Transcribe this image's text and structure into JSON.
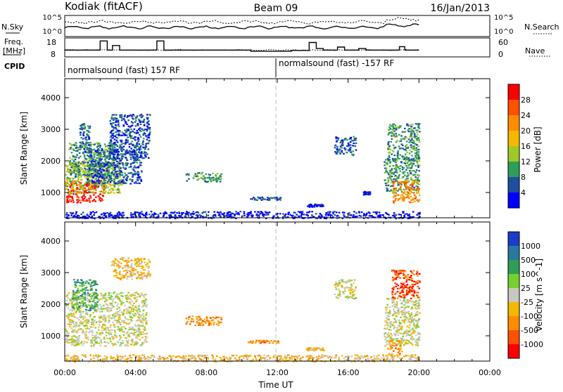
{
  "header": {
    "station": "Kodiak (fitACF)",
    "beam": "Beam 09",
    "date": "16/Jan/2013"
  },
  "summary": {
    "nsky_label": "N.Sky",
    "nsearch_label": "N.Search",
    "noise_ticks": [
      "10^5",
      "10^0"
    ],
    "noise_ticks_right": [
      "10^5",
      "10^0"
    ],
    "freq_label_1": "Freq.",
    "freq_label_2": "[MHz]",
    "freq_ticks": [
      "18",
      "8"
    ],
    "nave_label": "Nave",
    "nave_ticks": [
      "60",
      "0"
    ],
    "cpid_label": "CPID",
    "cpid_segments": [
      {
        "start_ut": 0,
        "end_ut": 12,
        "label": "normalsound (fast) 157 RF"
      },
      {
        "start_ut": 12,
        "end_ut": 20,
        "label": "normalsound (fast) -157 RF"
      }
    ],
    "freq_steps": [
      [
        0,
        11.6
      ],
      [
        2.0,
        16.4
      ],
      [
        2.4,
        11.6
      ],
      [
        2.7,
        14.0
      ],
      [
        3.1,
        11.6
      ],
      [
        5.2,
        16.4
      ],
      [
        5.6,
        11.6
      ],
      [
        10.5,
        11.0
      ],
      [
        12.8,
        11.4
      ],
      [
        13.8,
        15.6
      ],
      [
        14.2,
        12.4
      ],
      [
        14.6,
        11.6
      ],
      [
        15.4,
        13.2
      ],
      [
        15.8,
        11.6
      ],
      [
        16.6,
        12.4
      ],
      [
        17.0,
        11.6
      ],
      [
        18.9,
        13.4
      ],
      [
        19.2,
        11.6
      ],
      [
        20.0,
        11.6
      ]
    ]
  },
  "chart_data": [
    {
      "type": "heatmap",
      "panel": "power",
      "ylabel": "Slant Range [km]",
      "y_ticks": [
        1000,
        2000,
        3000,
        4000
      ],
      "ylim": [
        200,
        4600
      ],
      "x_ticks": [
        "00:00",
        "04:00",
        "08:00",
        "12:00",
        "16:00",
        "20:00",
        "00:00"
      ],
      "xlim_hours": [
        0,
        24
      ],
      "colorbar": {
        "label": "Power [dB]",
        "ticks": [
          "28",
          "24",
          "20",
          "16",
          "12",
          "8",
          "4"
        ],
        "colors": [
          "#ff0000",
          "#ff5000",
          "#ff8c00",
          "#f5b800",
          "#a0c828",
          "#2e9e58",
          "#1e4ea0",
          "#0000ff"
        ]
      },
      "regions": [
        {
          "t0": 0.0,
          "t1": 2.2,
          "r0": 700,
          "r1": 1400,
          "level": 0
        },
        {
          "t0": 0.0,
          "t1": 3.2,
          "r0": 1000,
          "r1": 2000,
          "level": 4
        },
        {
          "t0": 0.2,
          "t1": 2.8,
          "r0": 1500,
          "r1": 2600,
          "level": 5
        },
        {
          "t0": 1.2,
          "t1": 4.3,
          "r0": 1300,
          "r1": 2400,
          "level": 6
        },
        {
          "t0": 2.5,
          "t1": 4.8,
          "r0": 2100,
          "r1": 3500,
          "level": 6
        },
        {
          "t0": 0.8,
          "t1": 1.4,
          "r0": 2300,
          "r1": 3200,
          "level": 6
        },
        {
          "t0": 6.8,
          "t1": 8.8,
          "r0": 1350,
          "r1": 1650,
          "level": 5
        },
        {
          "t0": 10.3,
          "t1": 12.2,
          "r0": 780,
          "r1": 880,
          "level": 6
        },
        {
          "t0": 13.6,
          "t1": 14.6,
          "r0": 560,
          "r1": 650,
          "level": 7
        },
        {
          "t0": 15.2,
          "t1": 16.4,
          "r0": 2200,
          "r1": 2800,
          "level": 6
        },
        {
          "t0": 16.8,
          "t1": 17.2,
          "r0": 950,
          "r1": 1050,
          "level": 7
        },
        {
          "t0": 18.0,
          "t1": 20.0,
          "r0": 1000,
          "r1": 2100,
          "level": 5
        },
        {
          "t0": 18.5,
          "t1": 20.0,
          "r0": 700,
          "r1": 1400,
          "level": 2
        },
        {
          "t0": 18.2,
          "t1": 20.0,
          "r0": 2000,
          "r1": 3200,
          "level": 5
        },
        {
          "t0": 0.0,
          "t1": 20.0,
          "r0": 200,
          "r1": 420,
          "level": 7
        }
      ]
    },
    {
      "type": "heatmap",
      "panel": "velocity",
      "ylabel": "Slant Range [km]",
      "y_ticks": [
        1000,
        2000,
        3000,
        4000
      ],
      "ylim": [
        200,
        4600
      ],
      "x_ticks": [
        "00:00",
        "04:00",
        "08:00",
        "12:00",
        "16:00",
        "20:00",
        "00:00"
      ],
      "xlim_hours": [
        0,
        24
      ],
      "xlabel": "Time UT",
      "colorbar": {
        "label": "Velocity [m s^-1]",
        "ticks": [
          "1000",
          "500",
          "100",
          "25",
          "-25",
          "-100",
          "-500",
          "-1000"
        ],
        "colors": [
          "#1a3cc8",
          "#2878a0",
          "#2e9e58",
          "#78d030",
          "#c8c8c0",
          "#f5b800",
          "#ff8c00",
          "#ff5000",
          "#ff0000"
        ]
      },
      "regions": [
        {
          "t0": 0.0,
          "t1": 4.6,
          "r0": 700,
          "r1": 2400,
          "level": 4
        },
        {
          "t0": 0.4,
          "t1": 1.8,
          "r0": 1800,
          "r1": 2800,
          "level": 2
        },
        {
          "t0": 2.6,
          "t1": 4.8,
          "r0": 2800,
          "r1": 3500,
          "level": 5
        },
        {
          "t0": 6.8,
          "t1": 8.8,
          "r0": 1350,
          "r1": 1650,
          "level": 6
        },
        {
          "t0": 10.3,
          "t1": 12.2,
          "r0": 780,
          "r1": 880,
          "level": 6
        },
        {
          "t0": 13.6,
          "t1": 14.6,
          "r0": 560,
          "r1": 650,
          "level": 5
        },
        {
          "t0": 15.2,
          "t1": 16.4,
          "r0": 2200,
          "r1": 2800,
          "level": 4
        },
        {
          "t0": 18.0,
          "t1": 20.0,
          "r0": 700,
          "r1": 2200,
          "level": 4
        },
        {
          "t0": 18.4,
          "t1": 20.0,
          "r0": 2200,
          "r1": 3100,
          "level": 7
        },
        {
          "t0": 18.2,
          "t1": 19.0,
          "r0": 400,
          "r1": 900,
          "level": 6
        },
        {
          "t0": 0.0,
          "t1": 20.0,
          "r0": 200,
          "r1": 420,
          "level": 5
        }
      ]
    }
  ]
}
